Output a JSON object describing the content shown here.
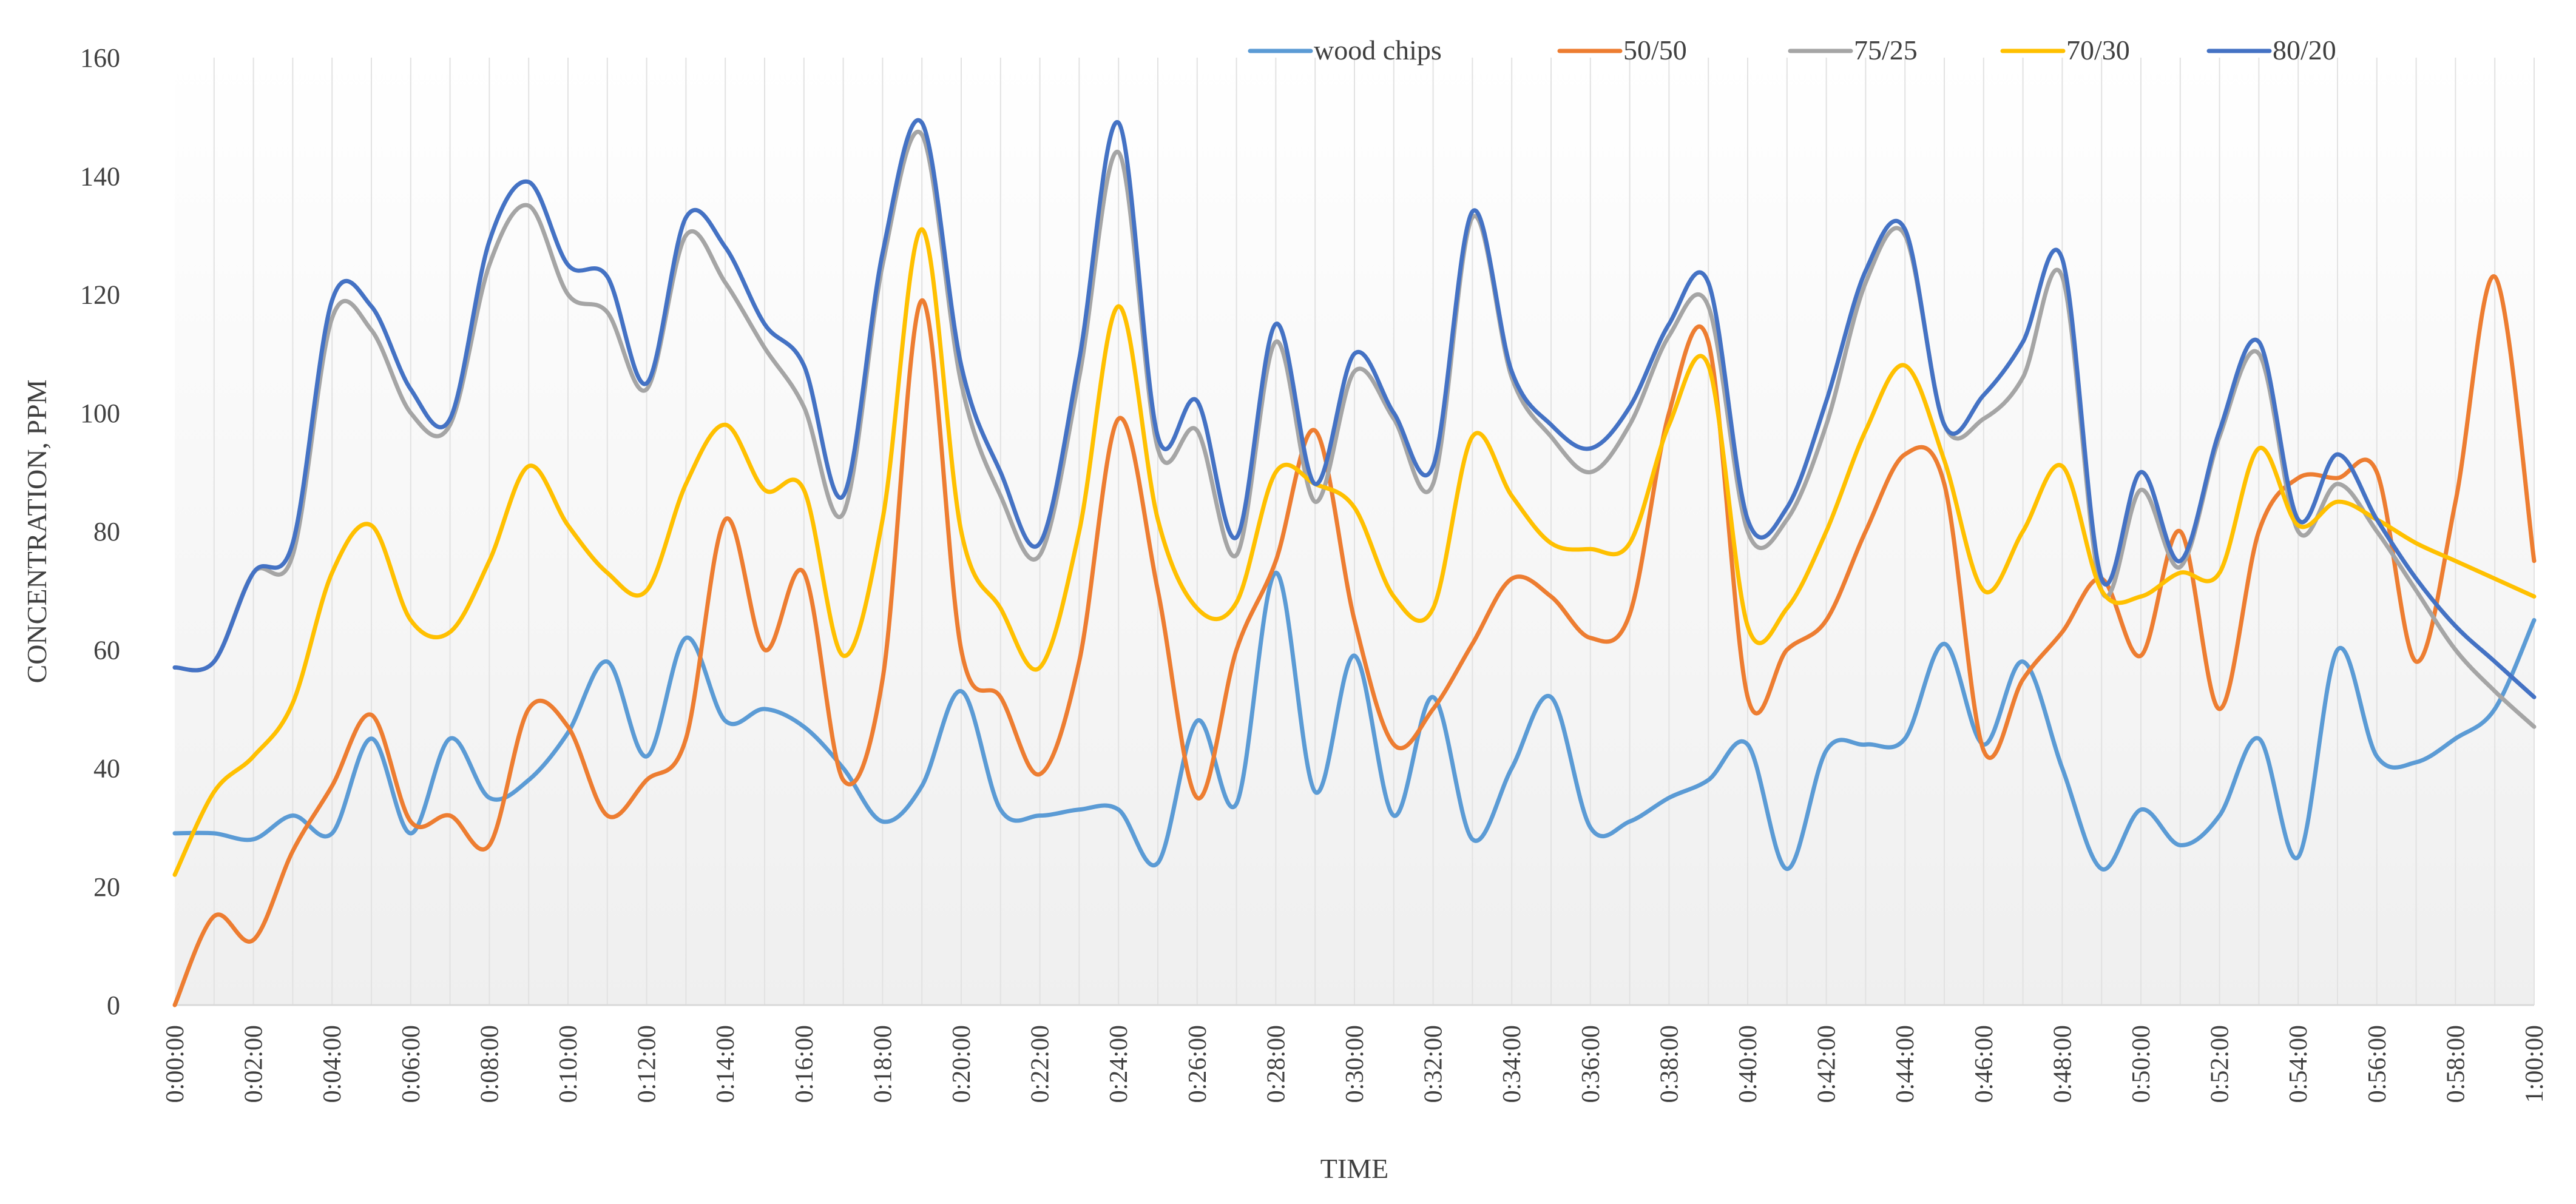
{
  "chart_data": {
    "type": "line",
    "title": "",
    "xlabel": "TIME",
    "ylabel": "CONCENTRATION, PPM",
    "ylim": [
      0,
      160
    ],
    "yticks": [
      0,
      20,
      40,
      60,
      80,
      100,
      120,
      140,
      160
    ],
    "x": [
      "0:00:00",
      "0:01:00",
      "0:02:00",
      "0:03:00",
      "0:04:00",
      "0:05:00",
      "0:06:00",
      "0:07:00",
      "0:08:00",
      "0:09:00",
      "0:10:00",
      "0:11:00",
      "0:12:00",
      "0:13:00",
      "0:14:00",
      "0:15:00",
      "0:16:00",
      "0:17:00",
      "0:18:00",
      "0:19:00",
      "0:20:00",
      "0:21:00",
      "0:22:00",
      "0:23:00",
      "0:24:00",
      "0:25:00",
      "0:26:00",
      "0:27:00",
      "0:28:00",
      "0:29:00",
      "0:30:00",
      "0:31:00",
      "0:32:00",
      "0:33:00",
      "0:34:00",
      "0:35:00",
      "0:36:00",
      "0:37:00",
      "0:38:00",
      "0:39:00",
      "0:40:00",
      "0:41:00",
      "0:42:00",
      "0:43:00",
      "0:44:00",
      "0:45:00",
      "0:46:00",
      "0:47:00",
      "0:48:00",
      "0:49:00",
      "0:50:00",
      "0:51:00",
      "0:52:00",
      "0:53:00",
      "0:54:00",
      "0:55:00",
      "0:56:00",
      "0:57:00",
      "0:58:00",
      "0:59:00",
      "1:00:00"
    ],
    "x_tick_labels": [
      "0:00:00",
      "0:02:00",
      "0:04:00",
      "0:06:00",
      "0:08:00",
      "0:10:00",
      "0:12:00",
      "0:14:00",
      "0:16:00",
      "0:18:00",
      "0:20:00",
      "0:22:00",
      "0:24:00",
      "0:26:00",
      "0:28:00",
      "0:30:00",
      "0:32:00",
      "0:34:00",
      "0:36:00",
      "0:38:00",
      "0:40:00",
      "0:42:00",
      "0:44:00",
      "0:46:00",
      "0:48:00",
      "0:50:00",
      "0:52:00",
      "0:54:00",
      "0:56:00",
      "0:58:00",
      "1:00:00"
    ],
    "legend_position": "top-right",
    "grid": "vertical",
    "series": [
      {
        "name": "wood chips",
        "color": "#5B9BD5",
        "values": [
          29,
          29,
          28,
          32,
          29,
          45,
          29,
          45,
          35,
          38,
          46,
          58,
          42,
          62,
          48,
          50,
          47,
          40,
          31,
          37,
          53,
          33,
          32,
          33,
          33,
          24,
          48,
          34,
          73,
          36,
          59,
          32,
          52,
          28,
          40,
          52,
          30,
          31,
          35,
          38,
          44,
          23,
          43,
          44,
          45,
          61,
          44,
          58,
          40,
          23,
          33,
          27,
          32,
          45,
          25,
          60,
          42,
          41,
          45,
          50,
          65
        ]
      },
      {
        "name": "50/50",
        "color": "#ED7D31",
        "values": [
          0,
          15,
          11,
          26,
          37,
          49,
          31,
          32,
          27,
          50,
          47,
          32,
          38,
          45,
          82,
          60,
          73,
          38,
          55,
          119,
          60,
          52,
          39,
          58,
          99,
          70,
          35,
          60,
          75,
          97,
          65,
          44,
          50,
          61,
          72,
          69,
          62,
          66,
          100,
          112,
          52,
          60,
          65,
          80,
          93,
          88,
          43,
          55,
          63,
          72,
          59,
          80,
          50,
          80,
          89,
          89,
          90,
          58,
          85,
          123,
          75
        ]
      },
      {
        "name": "75/25",
        "color": "#A5A5A5",
        "values": [
          57,
          58,
          73,
          76,
          116,
          114,
          100,
          98,
          125,
          135,
          120,
          117,
          104,
          130,
          122,
          111,
          101,
          83,
          125,
          147,
          105,
          86,
          76,
          106,
          144,
          94,
          97,
          76,
          112,
          85,
          107,
          99,
          88,
          133,
          106,
          96,
          90,
          98,
          113,
          118,
          80,
          82,
          98,
          122,
          130,
          98,
          99,
          106,
          123,
          70,
          87,
          74,
          96,
          110,
          80,
          88,
          80,
          70,
          60,
          53,
          47
        ]
      },
      {
        "name": "70/30",
        "color": "#FFC000",
        "values": [
          22,
          36,
          42,
          51,
          73,
          81,
          65,
          63,
          75,
          91,
          81,
          73,
          70,
          88,
          98,
          87,
          87,
          59,
          82,
          131,
          80,
          67,
          57,
          80,
          118,
          82,
          67,
          68,
          90,
          88,
          84,
          69,
          67,
          96,
          86,
          78,
          77,
          78,
          98,
          108,
          64,
          67,
          80,
          97,
          108,
          92,
          70,
          80,
          91,
          70,
          69,
          73,
          73,
          94,
          81,
          85,
          82,
          78,
          75,
          72,
          69
        ]
      },
      {
        "name": "80/20",
        "color": "#4472C4",
        "values": [
          57,
          58,
          73,
          78,
          119,
          118,
          104,
          99,
          129,
          139,
          125,
          123,
          105,
          133,
          128,
          115,
          108,
          86,
          127,
          149,
          108,
          90,
          78,
          109,
          149,
          96,
          102,
          79,
          115,
          88,
          110,
          100,
          91,
          134,
          107,
          98,
          94,
          101,
          115,
          122,
          82,
          84,
          102,
          124,
          131,
          98,
          103,
          112,
          126,
          72,
          90,
          75,
          97,
          112,
          82,
          93,
          82,
          72,
          64,
          58,
          52
        ]
      }
    ]
  }
}
